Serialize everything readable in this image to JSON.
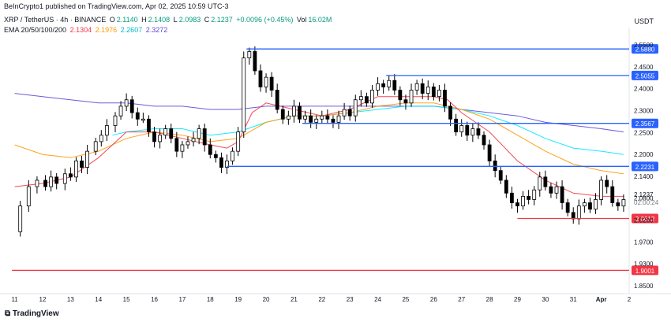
{
  "header": {
    "publisher": "BeInCrypto1 published on TradingView.com, Apr 02, 2025 10:59 UTC-3",
    "symbol": "XRP / TetherUS · 4h · BINANCE",
    "open_label": "O",
    "open": "2.1140",
    "high_label": "H",
    "high": "2.1408",
    "low_label": "L",
    "low": "2.0983",
    "close_label": "C",
    "close": "2.1237",
    "change": "+0.0096 (+0.45%)",
    "volume_label": "Vol",
    "volume": "16.02M",
    "ema_label": "EMA 20/50/100/200",
    "ema_values": [
      "2.1304",
      "2.1976",
      "2.2607",
      "2.3272"
    ]
  },
  "currency": "USDT",
  "footer": {
    "logo": "TradingView"
  },
  "colors": {
    "up": "#ffffff",
    "down": "#000000",
    "wick": "#000000",
    "ema20": "#f23645",
    "ema50": "#ff9800",
    "ema100": "#00e5ff",
    "ema200": "#5d48d6",
    "level_blue": "#2962ff",
    "level_red": "#f23645",
    "axis_text": "#131722"
  },
  "chart_data": {
    "type": "candlestick",
    "x_tick_labels": [
      "11",
      "12",
      "13",
      "14",
      "15",
      "16",
      "17",
      "18",
      "19",
      "20",
      "21",
      "22",
      "23",
      "24",
      "25",
      "26",
      "27",
      "28",
      "29",
      "30",
      "31",
      "Apr",
      "2"
    ],
    "y_tick_labels": [
      "2.5500",
      "2.4500",
      "2.4000",
      "2.3000",
      "2.2500",
      "2.2000",
      "2.1400",
      "2.0800",
      "2.0200",
      "1.9700",
      "1.9300",
      "1.8500"
    ],
    "ylim": [
      1.83,
      2.63
    ],
    "current_price": "2.1237",
    "countdown": "02:00:24",
    "ema_current_labels": [
      {
        "name": "EMA 20",
        "value": "2.1304"
      },
      {
        "name": "EMA 50",
        "value": "2.1976"
      },
      {
        "name": "EMA 100",
        "value": "2.2607"
      },
      {
        "name": "EMA 200",
        "value": "2.3272"
      }
    ],
    "levels": [
      {
        "value": 2.588,
        "label": "2.5880",
        "color": "blue",
        "from_day": 19.3
      },
      {
        "value": 2.5055,
        "label": "2.5055",
        "color": "blue",
        "from_day": 24.3
      },
      {
        "value": 2.3567,
        "label": "2.3567",
        "color": "blue",
        "from_day": 21.3
      },
      {
        "value": 2.2231,
        "label": "2.2231",
        "color": "blue",
        "from_day": 18.6
      },
      {
        "value": 2.0612,
        "label": "2.0612",
        "color": "red",
        "from_day": 29.0
      },
      {
        "value": 1.9001,
        "label": "1.9001",
        "color": "red",
        "from_day": 10.9
      }
    ],
    "close_path": [
      [
        11.0,
        2.02
      ],
      [
        11.2,
        2.1
      ],
      [
        11.5,
        2.16
      ],
      [
        11.8,
        2.18
      ],
      [
        12.1,
        2.16
      ],
      [
        12.3,
        2.19
      ],
      [
        12.5,
        2.17
      ],
      [
        12.8,
        2.2
      ],
      [
        13.0,
        2.19
      ],
      [
        13.2,
        2.24
      ],
      [
        13.4,
        2.22
      ],
      [
        13.6,
        2.27
      ],
      [
        13.9,
        2.3
      ],
      [
        14.1,
        2.32
      ],
      [
        14.3,
        2.35
      ],
      [
        14.6,
        2.38
      ],
      [
        14.8,
        2.41
      ],
      [
        15.0,
        2.43
      ],
      [
        15.2,
        2.39
      ],
      [
        15.4,
        2.37
      ],
      [
        15.6,
        2.37
      ],
      [
        15.8,
        2.33
      ],
      [
        16.0,
        2.3
      ],
      [
        16.2,
        2.32
      ],
      [
        16.4,
        2.34
      ],
      [
        16.6,
        2.31
      ],
      [
        16.8,
        2.27
      ],
      [
        17.0,
        2.29
      ],
      [
        17.2,
        2.3
      ],
      [
        17.4,
        2.31
      ],
      [
        17.6,
        2.34
      ],
      [
        17.8,
        2.29
      ],
      [
        18.0,
        2.26
      ],
      [
        18.2,
        2.25
      ],
      [
        18.4,
        2.22
      ],
      [
        18.6,
        2.24
      ],
      [
        18.8,
        2.27
      ],
      [
        19.0,
        2.33
      ],
      [
        19.2,
        2.56
      ],
      [
        19.4,
        2.58
      ],
      [
        19.6,
        2.52
      ],
      [
        19.8,
        2.47
      ],
      [
        20.0,
        2.5
      ],
      [
        20.2,
        2.46
      ],
      [
        20.4,
        2.4
      ],
      [
        20.6,
        2.37
      ],
      [
        20.8,
        2.38
      ],
      [
        21.0,
        2.41
      ],
      [
        21.2,
        2.37
      ],
      [
        21.4,
        2.38
      ],
      [
        21.6,
        2.36
      ],
      [
        21.8,
        2.37
      ],
      [
        22.0,
        2.38
      ],
      [
        22.2,
        2.37
      ],
      [
        22.4,
        2.36
      ],
      [
        22.6,
        2.38
      ],
      [
        22.8,
        2.4
      ],
      [
        23.0,
        2.38
      ],
      [
        23.2,
        2.43
      ],
      [
        23.4,
        2.44
      ],
      [
        23.6,
        2.42
      ],
      [
        23.8,
        2.46
      ],
      [
        24.0,
        2.48
      ],
      [
        24.2,
        2.47
      ],
      [
        24.4,
        2.49
      ],
      [
        24.6,
        2.46
      ],
      [
        24.8,
        2.43
      ],
      [
        25.0,
        2.42
      ],
      [
        25.2,
        2.46
      ],
      [
        25.4,
        2.48
      ],
      [
        25.6,
        2.45
      ],
      [
        25.8,
        2.47
      ],
      [
        26.0,
        2.44
      ],
      [
        26.2,
        2.46
      ],
      [
        26.4,
        2.41
      ],
      [
        26.6,
        2.37
      ],
      [
        26.8,
        2.33
      ],
      [
        27.0,
        2.35
      ],
      [
        27.2,
        2.32
      ],
      [
        27.4,
        2.34
      ],
      [
        27.6,
        2.32
      ],
      [
        27.8,
        2.29
      ],
      [
        28.0,
        2.24
      ],
      [
        28.2,
        2.21
      ],
      [
        28.4,
        2.18
      ],
      [
        28.6,
        2.14
      ],
      [
        28.8,
        2.11
      ],
      [
        29.0,
        2.1
      ],
      [
        29.2,
        2.13
      ],
      [
        29.4,
        2.12
      ],
      [
        29.6,
        2.15
      ],
      [
        29.8,
        2.19
      ],
      [
        30.0,
        2.16
      ],
      [
        30.2,
        2.14
      ],
      [
        30.4,
        2.16
      ],
      [
        30.6,
        2.11
      ],
      [
        30.8,
        2.08
      ],
      [
        31.0,
        2.06
      ],
      [
        31.2,
        2.1
      ],
      [
        31.4,
        2.11
      ],
      [
        31.6,
        2.09
      ],
      [
        31.8,
        2.12
      ],
      [
        32.0,
        2.18
      ],
      [
        32.2,
        2.16
      ],
      [
        32.4,
        2.11
      ],
      [
        32.6,
        2.1
      ],
      [
        32.8,
        2.12
      ]
    ],
    "ema20_path": [
      [
        11.0,
        2.16
      ],
      [
        12.0,
        2.17
      ],
      [
        13.0,
        2.19
      ],
      [
        14.0,
        2.25
      ],
      [
        15.0,
        2.33
      ],
      [
        16.0,
        2.33
      ],
      [
        17.0,
        2.31
      ],
      [
        18.0,
        2.29
      ],
      [
        18.6,
        2.28
      ],
      [
        19.0,
        2.3
      ],
      [
        19.5,
        2.39
      ],
      [
        20.0,
        2.42
      ],
      [
        21.0,
        2.4
      ],
      [
        22.0,
        2.38
      ],
      [
        23.0,
        2.4
      ],
      [
        24.0,
        2.44
      ],
      [
        25.0,
        2.44
      ],
      [
        26.0,
        2.44
      ],
      [
        26.5,
        2.43
      ],
      [
        27.0,
        2.39
      ],
      [
        28.0,
        2.33
      ],
      [
        29.0,
        2.24
      ],
      [
        30.0,
        2.18
      ],
      [
        31.0,
        2.14
      ],
      [
        32.0,
        2.13
      ],
      [
        32.8,
        2.13
      ]
    ],
    "ema50_path": [
      [
        11.0,
        2.29
      ],
      [
        12.0,
        2.26
      ],
      [
        13.0,
        2.25
      ],
      [
        14.0,
        2.27
      ],
      [
        15.0,
        2.31
      ],
      [
        16.0,
        2.33
      ],
      [
        17.0,
        2.32
      ],
      [
        18.0,
        2.3
      ],
      [
        19.0,
        2.31
      ],
      [
        20.0,
        2.36
      ],
      [
        21.0,
        2.38
      ],
      [
        22.0,
        2.38
      ],
      [
        23.0,
        2.39
      ],
      [
        24.0,
        2.41
      ],
      [
        25.0,
        2.42
      ],
      [
        26.0,
        2.42
      ],
      [
        27.0,
        2.4
      ],
      [
        28.0,
        2.37
      ],
      [
        29.0,
        2.32
      ],
      [
        30.0,
        2.27
      ],
      [
        31.0,
        2.23
      ],
      [
        32.0,
        2.21
      ],
      [
        32.8,
        2.2
      ]
    ],
    "ema100_path": [
      [
        14.5,
        2.32
      ],
      [
        15.0,
        2.33
      ],
      [
        16.0,
        2.34
      ],
      [
        17.0,
        2.34
      ],
      [
        18.0,
        2.32
      ],
      [
        19.0,
        2.33
      ],
      [
        20.0,
        2.36
      ],
      [
        21.0,
        2.38
      ],
      [
        22.0,
        2.38
      ],
      [
        23.0,
        2.39
      ],
      [
        24.0,
        2.4
      ],
      [
        25.0,
        2.41
      ],
      [
        26.0,
        2.41
      ],
      [
        27.0,
        2.4
      ],
      [
        28.0,
        2.38
      ],
      [
        29.0,
        2.35
      ],
      [
        30.0,
        2.31
      ],
      [
        31.0,
        2.28
      ],
      [
        32.0,
        2.27
      ],
      [
        32.8,
        2.26
      ]
    ],
    "ema200_path": [
      [
        11.0,
        2.45
      ],
      [
        12.0,
        2.44
      ],
      [
        13.0,
        2.43
      ],
      [
        14.0,
        2.42
      ],
      [
        15.0,
        2.42
      ],
      [
        16.0,
        2.41
      ],
      [
        17.0,
        2.41
      ],
      [
        18.0,
        2.4
      ],
      [
        19.0,
        2.4
      ],
      [
        20.0,
        2.41
      ],
      [
        21.0,
        2.41
      ],
      [
        22.0,
        2.41
      ],
      [
        23.0,
        2.41
      ],
      [
        24.0,
        2.41
      ],
      [
        25.0,
        2.41
      ],
      [
        26.0,
        2.41
      ],
      [
        27.0,
        2.4
      ],
      [
        28.0,
        2.39
      ],
      [
        29.0,
        2.38
      ],
      [
        30.0,
        2.36
      ],
      [
        31.0,
        2.35
      ],
      [
        32.0,
        2.34
      ],
      [
        32.8,
        2.33
      ]
    ]
  }
}
